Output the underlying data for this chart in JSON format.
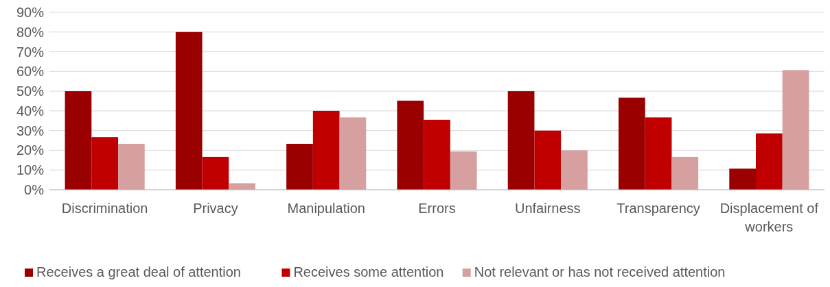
{
  "chart_data": {
    "type": "bar",
    "categories": [
      "Discrimination",
      "Privacy",
      "Manipulation",
      "Errors",
      "Unfairness",
      "Transparency",
      "Displacement of workers"
    ],
    "series": [
      {
        "name": "Receives a great deal of attention",
        "color": "#9a0000",
        "values": [
          50,
          80,
          23.3,
          45.2,
          50,
          46.7,
          10.7
        ]
      },
      {
        "name": "Receives some attention",
        "color": "#c00000",
        "values": [
          26.7,
          16.7,
          40,
          35.5,
          30,
          36.7,
          28.6
        ]
      },
      {
        "name": "Not relevant or has not received attention",
        "color": "#d7a0a0",
        "values": [
          23.3,
          3.3,
          36.7,
          19.4,
          20,
          16.7,
          60.7
        ]
      }
    ],
    "ylim": [
      0,
      90
    ],
    "yticks": [
      {
        "value": 0,
        "label": "0%"
      },
      {
        "value": 10,
        "label": "10%"
      },
      {
        "value": 20,
        "label": "20%"
      },
      {
        "value": 30,
        "label": "30%"
      },
      {
        "value": 40,
        "label": "40%"
      },
      {
        "value": 50,
        "label": "50%"
      },
      {
        "value": 60,
        "label": "60%"
      },
      {
        "value": 70,
        "label": "70%"
      },
      {
        "value": 80,
        "label": "80%"
      },
      {
        "value": 90,
        "label": "90%"
      }
    ],
    "grid": "y",
    "legend": "bottom"
  }
}
